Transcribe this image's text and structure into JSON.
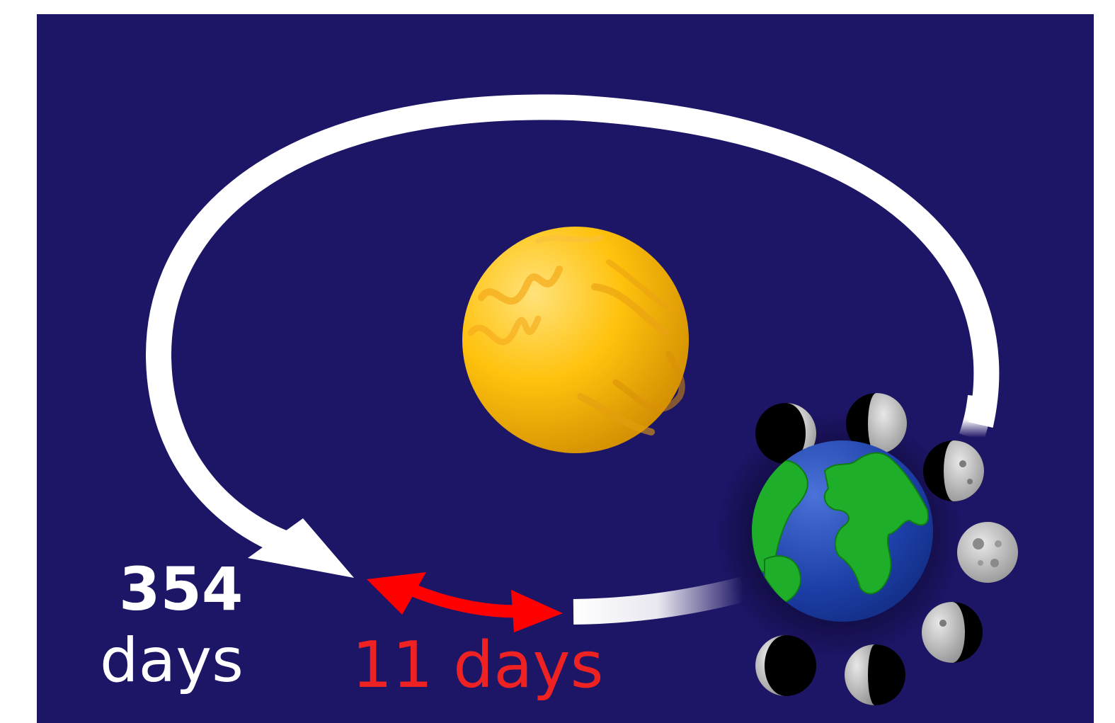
{
  "colors": {
    "background": "#1d1566",
    "orbit": "#ffffff",
    "difference_arrow": "#ff0000",
    "label_white": "#ffffff",
    "label_red": "#ee2222",
    "sun_light": "#ffe27a",
    "sun_mid": "#ffc20d",
    "sun_dark": "#c98400",
    "ocean": "#1c3fa8",
    "land": "#1fae2a"
  },
  "labels": {
    "lunar_year_value": "354",
    "lunar_year_unit": "days",
    "difference": "11 days"
  },
  "icons": [
    "sun-icon",
    "earth-icon",
    "moon-phase-icon"
  ]
}
